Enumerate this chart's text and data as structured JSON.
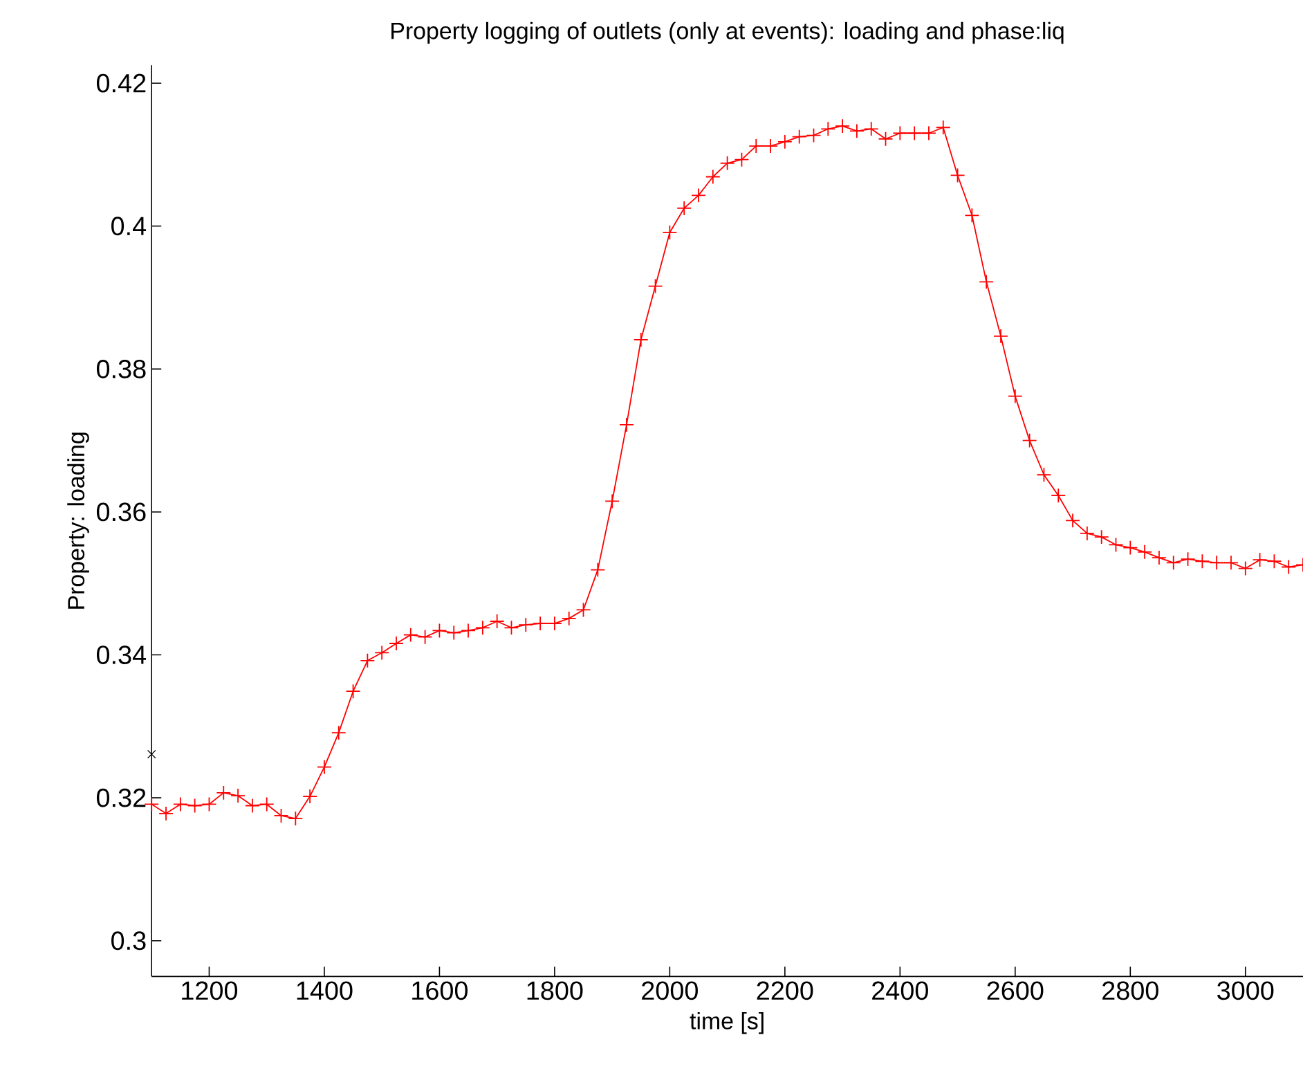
{
  "chart_data": {
    "type": "line",
    "title": "Property logging of outlets (only at events): loading and phase:liq",
    "xlabel": "time [s]",
    "ylabel": "Property: loading",
    "xlim": [
      1100,
      3100
    ],
    "ylim": [
      0.295,
      0.4225
    ],
    "xticks": [
      1200,
      1400,
      1600,
      1800,
      2000,
      2200,
      2400,
      2600,
      2800,
      3000
    ],
    "yticks": [
      0.3,
      0.32,
      0.34,
      0.36,
      0.38,
      0.4,
      0.42
    ],
    "grid": false,
    "series": [
      {
        "color": "#ff0000",
        "marker": "cross",
        "line_style": "solid",
        "x": [
          1100,
          1125,
          1150,
          1175,
          1200,
          1225,
          1250,
          1275,
          1300,
          1325,
          1350,
          1375,
          1400,
          1425,
          1450,
          1475,
          1500,
          1525,
          1550,
          1575,
          1600,
          1625,
          1650,
          1675,
          1700,
          1725,
          1750,
          1775,
          1800,
          1825,
          1850,
          1875,
          1900,
          1925,
          1950,
          1975,
          2000,
          2025,
          2050,
          2075,
          2100,
          2125,
          2150,
          2175,
          2200,
          2225,
          2250,
          2275,
          2300,
          2325,
          2350,
          2375,
          2400,
          2425,
          2450,
          2475,
          2500,
          2525,
          2550,
          2575,
          2600,
          2625,
          2650,
          2675,
          2700,
          2725,
          2750,
          2775,
          2800,
          2825,
          2850,
          2875,
          2900,
          2925,
          2950,
          2975,
          3000,
          3025,
          3050,
          3075,
          3100
        ],
        "values": [
          0.3191,
          0.3178,
          0.3191,
          0.3189,
          0.3191,
          0.3207,
          0.3203,
          0.3189,
          0.3191,
          0.3175,
          0.3171,
          0.3202,
          0.3243,
          0.3291,
          0.3349,
          0.3392,
          0.3403,
          0.3416,
          0.3428,
          0.3425,
          0.3434,
          0.3431,
          0.3434,
          0.3438,
          0.3447,
          0.3438,
          0.3442,
          0.3444,
          0.3444,
          0.3451,
          0.3463,
          0.3519,
          0.3615,
          0.3722,
          0.3841,
          0.3916,
          0.3991,
          0.4025,
          0.4043,
          0.4069,
          0.4088,
          0.4093,
          0.4112,
          0.4112,
          0.4118,
          0.4125,
          0.4127,
          0.4136,
          0.414,
          0.4133,
          0.4136,
          0.4122,
          0.413,
          0.413,
          0.413,
          0.4138,
          0.4071,
          0.4015,
          0.3922,
          0.3846,
          0.3762,
          0.37,
          0.3652,
          0.3623,
          0.3588,
          0.357,
          0.3565,
          0.3554,
          0.355,
          0.3544,
          0.3536,
          0.3529,
          0.3534,
          0.3531,
          0.3529,
          0.3529,
          0.3521,
          0.3533,
          0.3531,
          0.3523,
          0.3526
        ]
      },
      {
        "type": "scatter",
        "color": "#000000",
        "marker": "cross",
        "x": [
          1100
        ],
        "values": [
          0.3261
        ]
      }
    ]
  }
}
